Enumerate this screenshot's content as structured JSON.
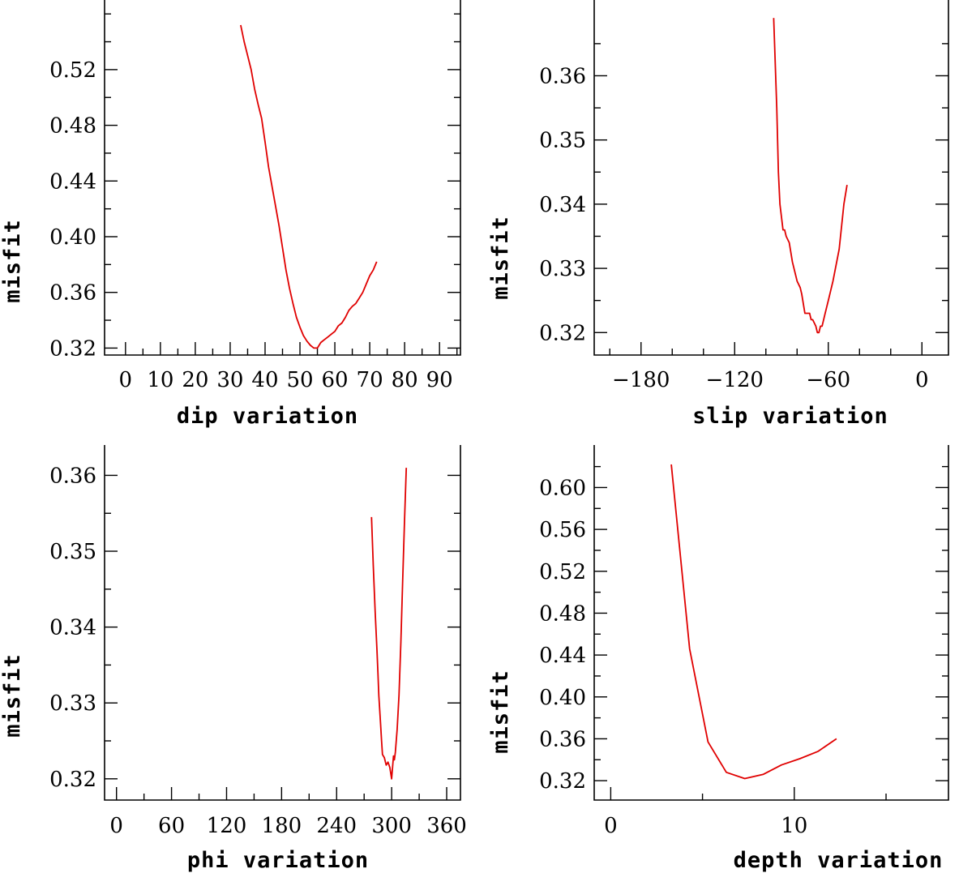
{
  "chart_data": [
    {
      "type": "line",
      "xlabel": "dip    variation",
      "ylabel": "misfit",
      "xlim": [
        -6,
        96
      ],
      "ylim": [
        0.315,
        0.57
      ],
      "x_ticks": [
        0,
        10,
        20,
        30,
        40,
        50,
        60,
        70,
        80,
        90
      ],
      "x_tick_labels": [
        "0",
        "10",
        "20",
        "30",
        "40",
        "50",
        "60",
        "70",
        "80",
        "90"
      ],
      "x_minor_ticks": [
        5,
        15,
        25,
        35,
        45,
        55,
        65,
        75,
        85,
        95
      ],
      "y_ticks": [
        0.32,
        0.36,
        0.4,
        0.44,
        0.48,
        0.52
      ],
      "y_tick_labels": [
        "0.32",
        "0.36",
        "0.40",
        "0.44",
        "0.48",
        "0.52"
      ],
      "y_minor_ticks": [
        0.34,
        0.38,
        0.42,
        0.46,
        0.5,
        0.54,
        0.56
      ],
      "series": [
        {
          "name": "misfit",
          "color": "#e00000",
          "x": [
            33,
            34,
            35,
            36,
            37,
            38,
            39,
            40,
            41,
            42,
            43,
            44,
            45,
            46,
            47,
            48,
            49,
            50,
            51,
            52,
            53,
            54,
            55,
            56,
            57,
            58,
            59,
            60,
            61,
            62,
            63,
            64,
            65,
            66,
            67,
            68,
            69,
            70,
            71,
            72
          ],
          "values": [
            0.552,
            0.54,
            0.53,
            0.52,
            0.506,
            0.495,
            0.485,
            0.468,
            0.45,
            0.436,
            0.422,
            0.408,
            0.392,
            0.376,
            0.363,
            0.352,
            0.342,
            0.335,
            0.329,
            0.325,
            0.322,
            0.32,
            0.32,
            0.324,
            0.326,
            0.328,
            0.33,
            0.332,
            0.336,
            0.338,
            0.342,
            0.347,
            0.35,
            0.352,
            0.356,
            0.36,
            0.366,
            0.372,
            0.376,
            0.382
          ]
        }
      ]
    },
    {
      "type": "line",
      "xlabel": "slip   variation",
      "ylabel": "misfit",
      "xlim": [
        -210,
        17
      ],
      "ylim": [
        0.3165,
        0.3718
      ],
      "x_ticks": [
        -180,
        -120,
        -60,
        0
      ],
      "x_tick_labels": [
        "−180",
        "−120",
        "−60",
        "0"
      ],
      "x_minor_ticks": [
        -200,
        -160,
        -140,
        -100,
        -80,
        -40,
        -20
      ],
      "y_ticks": [
        0.32,
        0.33,
        0.34,
        0.35,
        0.36
      ],
      "y_tick_labels": [
        "0.32",
        "0.33",
        "0.34",
        "0.35",
        "0.36"
      ],
      "y_minor_ticks": [
        0.325,
        0.335,
        0.345,
        0.355,
        0.365
      ],
      "series": [
        {
          "name": "misfit",
          "color": "#e00000",
          "x": [
            -95,
            -93,
            -92,
            -91,
            -90,
            -89,
            -88,
            -87,
            -85,
            -83,
            -80,
            -78,
            -77,
            -75,
            -73,
            -72,
            -71,
            -70,
            -68,
            -67,
            -66,
            -65,
            -64,
            -62,
            -60,
            -57,
            -53,
            -50,
            -48
          ],
          "values": [
            0.369,
            0.355,
            0.345,
            0.34,
            0.338,
            0.336,
            0.336,
            0.335,
            0.334,
            0.331,
            0.328,
            0.327,
            0.326,
            0.323,
            0.323,
            0.323,
            0.322,
            0.322,
            0.321,
            0.32,
            0.32,
            0.321,
            0.321,
            0.323,
            0.325,
            0.328,
            0.333,
            0.34,
            0.343
          ]
        }
      ]
    },
    {
      "type": "line",
      "xlabel": "phi    variation",
      "ylabel": "misfit",
      "xlim": [
        -13,
        375
      ],
      "ylim": [
        0.3172,
        0.364
      ],
      "x_ticks": [
        0,
        60,
        120,
        180,
        240,
        300,
        360
      ],
      "x_tick_labels": [
        "0",
        "60",
        "120",
        "180",
        "240",
        "300",
        "360"
      ],
      "x_minor_ticks": [
        30,
        90,
        150,
        210,
        270,
        330
      ],
      "y_ticks": [
        0.32,
        0.33,
        0.34,
        0.35,
        0.36
      ],
      "y_tick_labels": [
        "0.32",
        "0.33",
        "0.34",
        "0.35",
        "0.36"
      ],
      "y_minor_ticks": [
        0.325,
        0.335,
        0.345,
        0.355
      ],
      "series": [
        {
          "name": "misfit",
          "color": "#e00000",
          "x": [
            278,
            280,
            282,
            284,
            285,
            286,
            288,
            289,
            290,
            292,
            294,
            296,
            298,
            300,
            302,
            303,
            304,
            306,
            308,
            310,
            312,
            314,
            316
          ],
          "values": [
            0.3545,
            0.348,
            0.342,
            0.337,
            0.334,
            0.331,
            0.327,
            0.325,
            0.3232,
            0.3228,
            0.3218,
            0.3222,
            0.3215,
            0.32,
            0.323,
            0.3225,
            0.3235,
            0.3265,
            0.331,
            0.338,
            0.346,
            0.354,
            0.361
          ]
        }
      ]
    },
    {
      "type": "line",
      "xlabel": "depth  variation",
      "ylabel": "misfit",
      "xlim": [
        -0.9,
        18.4
      ],
      "ylim": [
        0.3015,
        0.6406
      ],
      "x_ticks": [
        0,
        10
      ],
      "x_tick_labels": [
        "0",
        "10"
      ],
      "x_minor_ticks": [
        5,
        15
      ],
      "y_ticks": [
        0.32,
        0.36,
        0.4,
        0.44,
        0.48,
        0.52,
        0.56,
        0.6
      ],
      "y_tick_labels": [
        "0.32",
        "0.36",
        "0.40",
        "0.44",
        "0.48",
        "0.52",
        "0.56",
        "0.60"
      ],
      "y_minor_ticks": [
        0.34,
        0.38,
        0.42,
        0.46,
        0.5,
        0.54,
        0.58,
        0.62
      ],
      "series": [
        {
          "name": "misfit",
          "color": "#e00000",
          "x": [
            3.3,
            4.3,
            5.3,
            6.3,
            7.3,
            8.3,
            9.3,
            10.3,
            11.3,
            12.3
          ],
          "values": [
            0.622,
            0.446,
            0.357,
            0.328,
            0.322,
            0.326,
            0.335,
            0.341,
            0.348,
            0.36
          ]
        }
      ]
    }
  ]
}
